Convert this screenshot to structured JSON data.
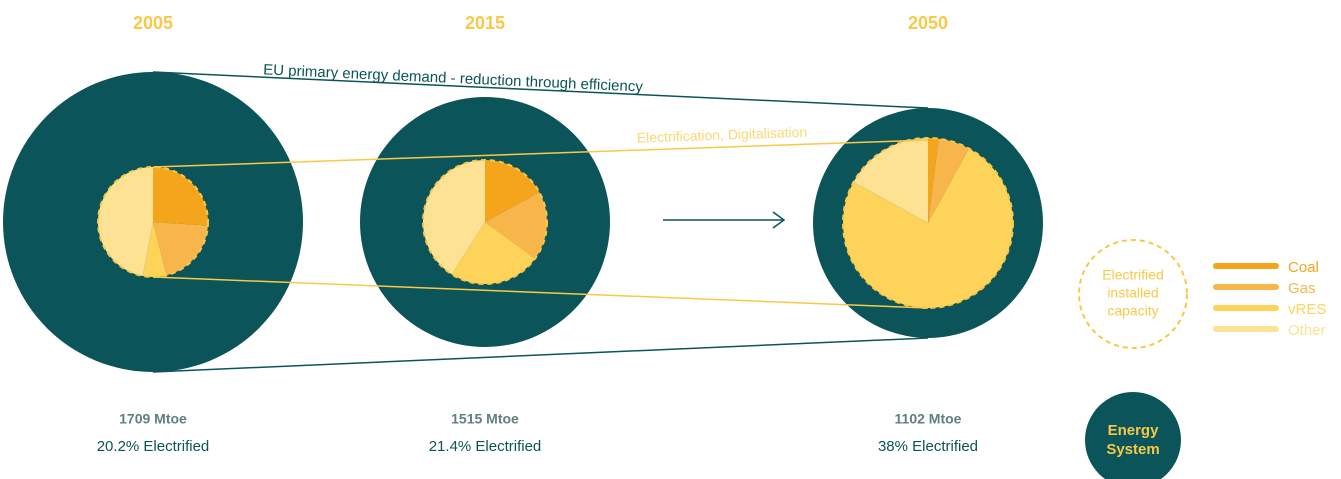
{
  "diagram": {
    "efficiency_label": "EU primary energy demand - reduction through efficiency",
    "electrification_label": "Electrification, Digitalisation",
    "panels": [
      {
        "year": "2005",
        "demand": "1709 Mtoe",
        "electrified": "20.2% Electrified",
        "shares": [
          26,
          20,
          7,
          47
        ]
      },
      {
        "year": "2015",
        "demand": "1515 Mtoe",
        "electrified": "21.4% Electrified",
        "shares": [
          17,
          18,
          24,
          41
        ]
      },
      {
        "year": "2050",
        "demand": "1102 Mtoe",
        "electrified": "38% Electrified",
        "shares": [
          2,
          6,
          75,
          17
        ]
      }
    ],
    "legend": {
      "capacity_label": [
        "Electrified",
        "installed",
        "capacity"
      ],
      "system_label": [
        "Energy",
        "System"
      ],
      "sources": [
        {
          "name": "Coal",
          "color": "#f4a51c"
        },
        {
          "name": "Gas",
          "color": "#f8b54a"
        },
        {
          "name": "vRES",
          "color": "#fdd35a"
        },
        {
          "name": "Other",
          "color": "#fde293"
        }
      ]
    }
  }
}
